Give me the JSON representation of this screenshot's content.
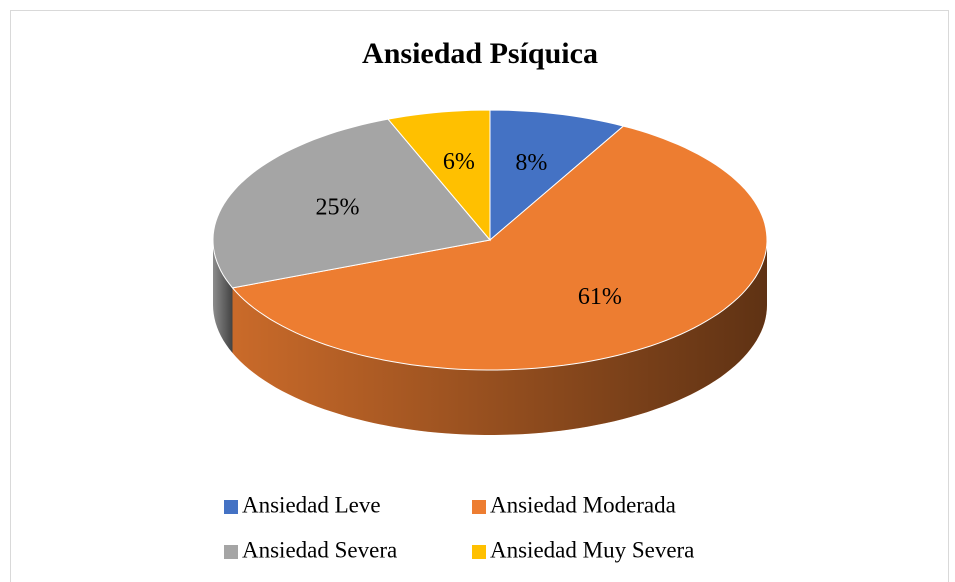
{
  "chart_data": {
    "type": "pie",
    "title": "Ansiedad Psíquica",
    "categories": [
      "Ansiedad Leve",
      "Ansiedad Moderada",
      "Ansiedad Severa",
      "Ansiedad Muy Severa"
    ],
    "values": [
      8,
      61,
      25,
      6
    ],
    "value_labels": [
      "8%",
      "61%",
      "25%",
      "6%"
    ],
    "colors": [
      "#4472c4",
      "#ed7d31",
      "#a5a5a5",
      "#ffc000"
    ],
    "legend": "bottom"
  }
}
